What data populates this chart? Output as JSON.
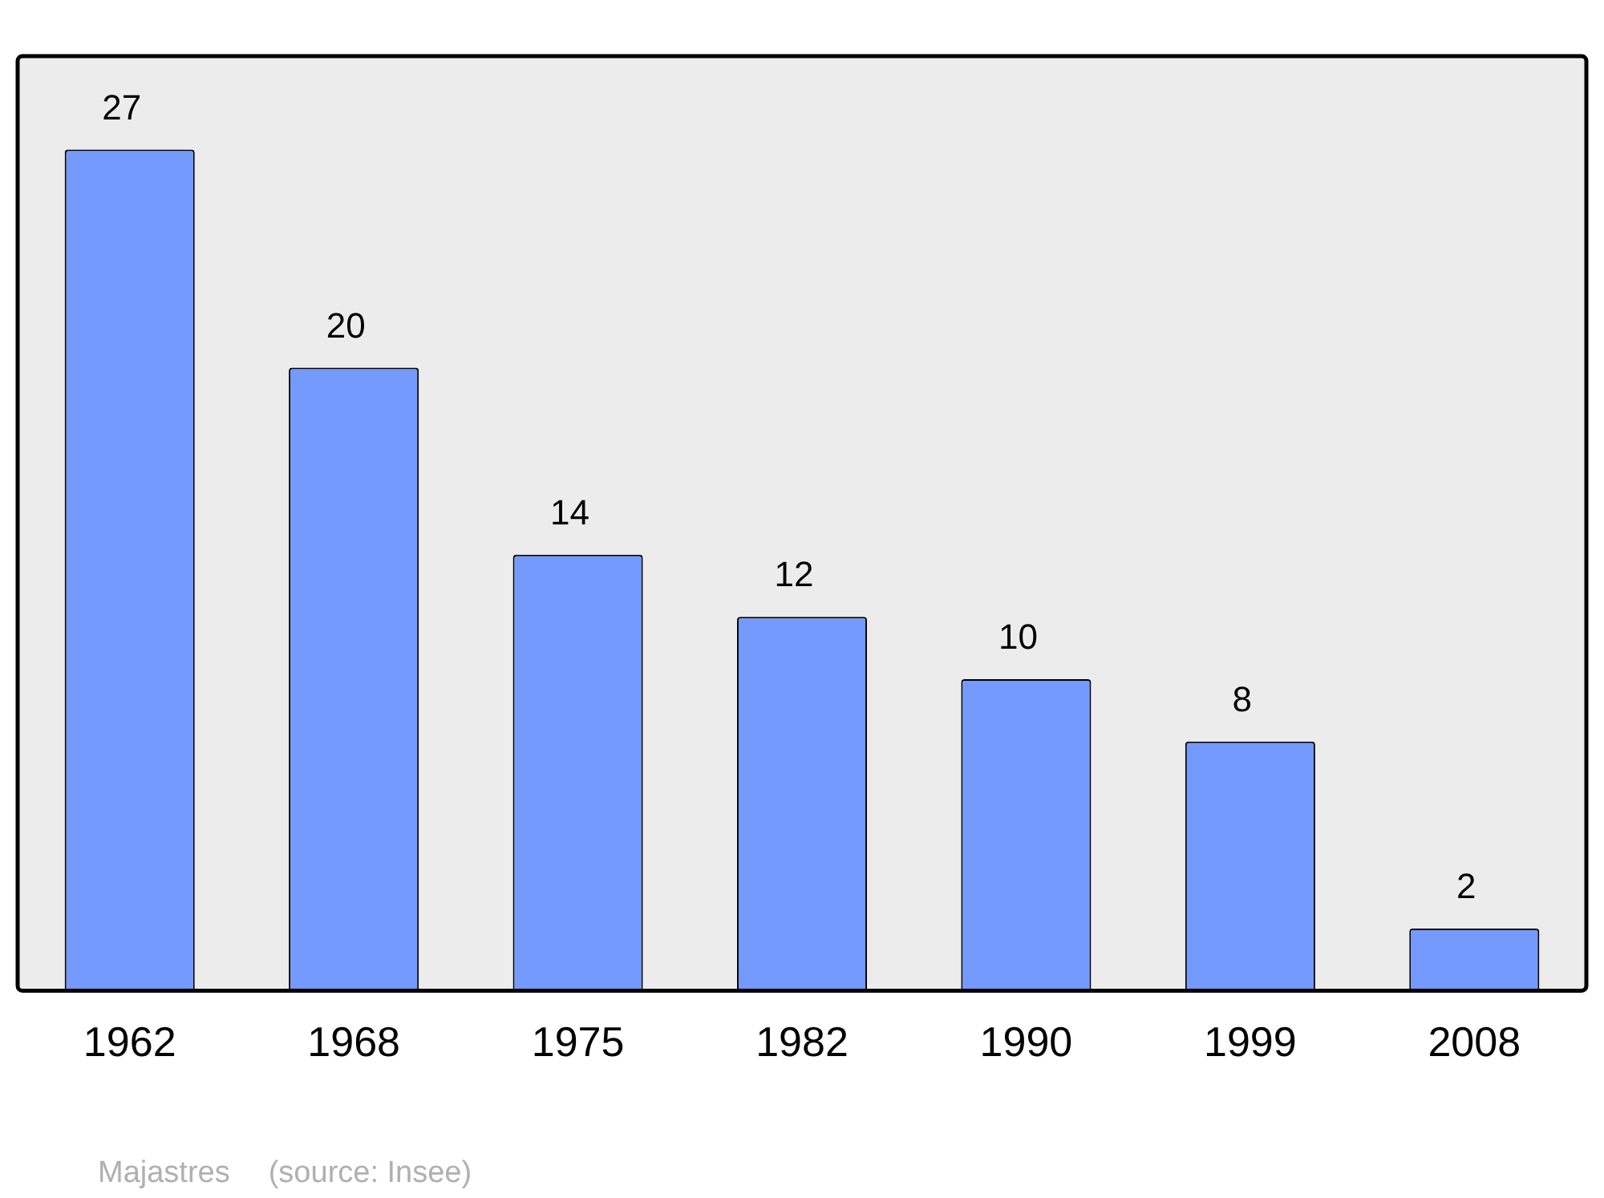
{
  "chart_data": {
    "type": "bar",
    "categories": [
      "1962",
      "1968",
      "1975",
      "1982",
      "1990",
      "1999",
      "2008"
    ],
    "values": [
      27,
      20,
      14,
      12,
      10,
      8,
      2
    ],
    "color": "#7499ff",
    "data_labels": true,
    "grid": false,
    "legend": false,
    "annotations": [
      "Majastres",
      "(source: Insee)"
    ]
  }
}
